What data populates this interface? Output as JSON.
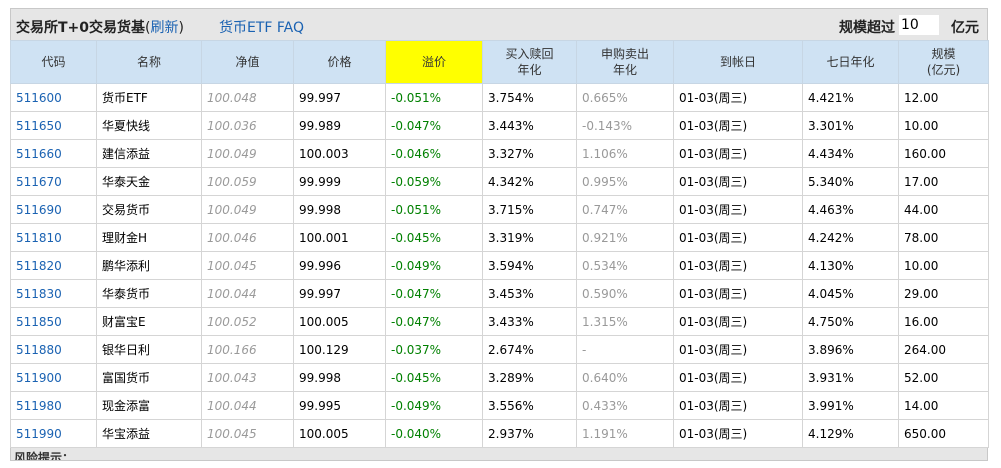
{
  "header": {
    "title": "交易所T+0交易货基",
    "paren_open": "(",
    "paren_close": ")",
    "refresh_label": "刷新",
    "faq_label": "货币ETF FAQ",
    "scale_label": "规模超过",
    "scale_value": "10",
    "scale_unit": "亿元"
  },
  "columns": {
    "code": "代码",
    "name": "名称",
    "nav": "净值",
    "price": "价格",
    "premium": "溢价",
    "buy_redeem_1": "买入赎回",
    "buy_redeem_2": "年化",
    "sub_sell_1": "申购卖出",
    "sub_sell_2": "年化",
    "arrival": "到帐日",
    "seven_day": "七日年化",
    "scale_1": "规模",
    "scale_2": "(亿元)"
  },
  "rows": [
    {
      "code": "511600",
      "name": "货币ETF",
      "nav": "100.048",
      "price": "99.997",
      "premium": "-0.051%",
      "buy_redeem": "3.754%",
      "sub_sell": "0.665%",
      "arrival": "01-03(周三)",
      "seven_day": "4.421%",
      "scale": "12.00"
    },
    {
      "code": "511650",
      "name": "华夏快线",
      "nav": "100.036",
      "price": "99.989",
      "premium": "-0.047%",
      "buy_redeem": "3.443%",
      "sub_sell": "-0.143%",
      "arrival": "01-03(周三)",
      "seven_day": "3.301%",
      "scale": "10.00"
    },
    {
      "code": "511660",
      "name": "建信添益",
      "nav": "100.049",
      "price": "100.003",
      "premium": "-0.046%",
      "buy_redeem": "3.327%",
      "sub_sell": "1.106%",
      "arrival": "01-03(周三)",
      "seven_day": "4.434%",
      "scale": "160.00"
    },
    {
      "code": "511670",
      "name": "华泰天金",
      "nav": "100.059",
      "price": "99.999",
      "premium": "-0.059%",
      "buy_redeem": "4.342%",
      "sub_sell": "0.995%",
      "arrival": "01-03(周三)",
      "seven_day": "5.340%",
      "scale": "17.00"
    },
    {
      "code": "511690",
      "name": "交易货币",
      "nav": "100.049",
      "price": "99.998",
      "premium": "-0.051%",
      "buy_redeem": "3.715%",
      "sub_sell": "0.747%",
      "arrival": "01-03(周三)",
      "seven_day": "4.463%",
      "scale": "44.00"
    },
    {
      "code": "511810",
      "name": "理财金H",
      "nav": "100.046",
      "price": "100.001",
      "premium": "-0.045%",
      "buy_redeem": "3.319%",
      "sub_sell": "0.921%",
      "arrival": "01-03(周三)",
      "seven_day": "4.242%",
      "scale": "78.00"
    },
    {
      "code": "511820",
      "name": "鹏华添利",
      "nav": "100.045",
      "price": "99.996",
      "premium": "-0.049%",
      "buy_redeem": "3.594%",
      "sub_sell": "0.534%",
      "arrival": "01-03(周三)",
      "seven_day": "4.130%",
      "scale": "10.00"
    },
    {
      "code": "511830",
      "name": "华泰货币",
      "nav": "100.044",
      "price": "99.997",
      "premium": "-0.047%",
      "buy_redeem": "3.453%",
      "sub_sell": "0.590%",
      "arrival": "01-03(周三)",
      "seven_day": "4.045%",
      "scale": "29.00"
    },
    {
      "code": "511850",
      "name": "财富宝E",
      "nav": "100.052",
      "price": "100.005",
      "premium": "-0.047%",
      "buy_redeem": "3.433%",
      "sub_sell": "1.315%",
      "arrival": "01-03(周三)",
      "seven_day": "4.750%",
      "scale": "16.00"
    },
    {
      "code": "511880",
      "name": "银华日利",
      "nav": "100.166",
      "price": "100.129",
      "premium": "-0.037%",
      "buy_redeem": "2.674%",
      "sub_sell": "-",
      "arrival": "01-03(周三)",
      "seven_day": "3.896%",
      "scale": "264.00"
    },
    {
      "code": "511900",
      "name": "富国货币",
      "nav": "100.043",
      "price": "99.998",
      "premium": "-0.045%",
      "buy_redeem": "3.289%",
      "sub_sell": "0.640%",
      "arrival": "01-03(周三)",
      "seven_day": "3.931%",
      "scale": "52.00"
    },
    {
      "code": "511980",
      "name": "现金添富",
      "nav": "100.044",
      "price": "99.995",
      "premium": "-0.049%",
      "buy_redeem": "3.556%",
      "sub_sell": "0.433%",
      "arrival": "01-03(周三)",
      "seven_day": "3.991%",
      "scale": "14.00"
    },
    {
      "code": "511990",
      "name": "华宝添益",
      "nav": "100.045",
      "price": "100.005",
      "premium": "-0.040%",
      "buy_redeem": "2.937%",
      "sub_sell": "1.191%",
      "arrival": "01-03(周三)",
      "seven_day": "4.129%",
      "scale": "650.00"
    }
  ],
  "footer": {
    "risk_label": "风险提示："
  },
  "colors": {
    "header_bg": "#cfe2f3",
    "highlight": "#ffff00",
    "link": "#1a62b2",
    "premium": "#008000"
  }
}
